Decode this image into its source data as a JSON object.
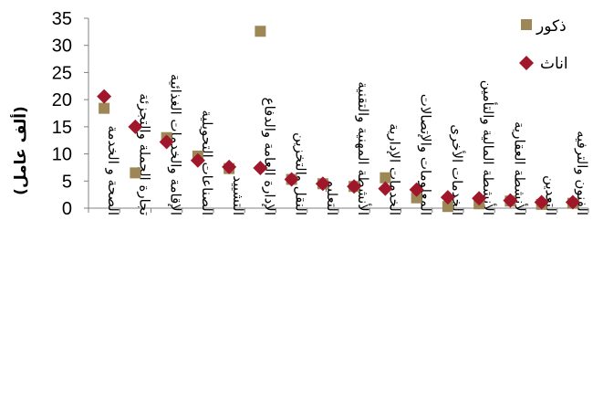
{
  "chart_data": {
    "type": "scatter",
    "title": "",
    "xlabel": "",
    "ylabel": "(ألف عامل)",
    "ylim": [
      0,
      35
    ],
    "yticks": [
      0,
      5,
      10,
      15,
      20,
      25,
      30,
      35
    ],
    "grid": false,
    "legend_position": "top-right",
    "categories": [
      "الصحة و الخدمة",
      "تجارة الجملة والتجزئة",
      "الإقامة والخدمات الغذائية",
      "الصناعات التحويلية",
      "التشييد",
      "الإدارة العامة والدفاع",
      "النقل والتخزين",
      "التعليم",
      "الأنشطة المهنية والتقنية",
      "الخدمات الإدارية",
      "المعلومات والإتصالات",
      "الخدمات الأخرى",
      "الأنشطة المالية والتأمين",
      "الأنشطة العقارية",
      "التعدين",
      "الفنون والترفيه"
    ],
    "series": [
      {
        "name": "ذكور",
        "marker": "square",
        "color": "#9E8756",
        "values": [
          18.4,
          6.5,
          13.0,
          9.6,
          7.3,
          32.6,
          5.3,
          4.5,
          4.0,
          5.6,
          1.9,
          0.3,
          0.8,
          1.3,
          0.7,
          0.9
        ]
      },
      {
        "name": "اناث",
        "marker": "diamond",
        "color": "#A0172B",
        "values": [
          20.6,
          15.0,
          12.2,
          8.8,
          7.6,
          7.4,
          5.3,
          4.5,
          4.0,
          3.6,
          3.4,
          2.0,
          1.8,
          1.4,
          1.1,
          1.1
        ]
      }
    ]
  }
}
